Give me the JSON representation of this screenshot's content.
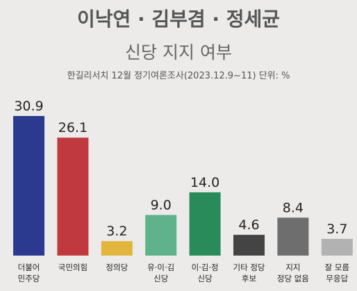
{
  "title": "이낙연 · 김부겸 · 정세균",
  "subtitle": "신당 지지 여부",
  "source": "한길리서치 12월 정기여론조사(2023.12.9~11) 단위: %",
  "chart_data": {
    "type": "bar",
    "title": "이낙연 · 김부겸 · 정세균 신당 지지 여부",
    "categories": [
      [
        "더불어",
        "민주당"
      ],
      [
        "국민의힘"
      ],
      [
        "정의당"
      ],
      [
        "유·이·김",
        "신당"
      ],
      [
        "이·김·정",
        "신당"
      ],
      [
        "기타 정당",
        "후보"
      ],
      [
        "지지",
        "정당 없음"
      ],
      [
        "잘 모름",
        "무응답"
      ]
    ],
    "values": [
      30.9,
      26.1,
      3.2,
      9.0,
      14.0,
      4.6,
      8.4,
      3.7
    ],
    "value_labels": [
      "30.9",
      "26.1",
      "3.2",
      "9.0",
      "14.0",
      "4.6",
      "8.4",
      "3.7"
    ],
    "colors": [
      "#2b3a8e",
      "#c0393f",
      "#e2b53e",
      "#5fb28c",
      "#2a8b5a",
      "#444444",
      "#6e6e6e",
      "#b2b2b2"
    ],
    "unit": "%",
    "ylim": [
      0,
      30.9
    ],
    "grid": false,
    "legend": "none"
  }
}
